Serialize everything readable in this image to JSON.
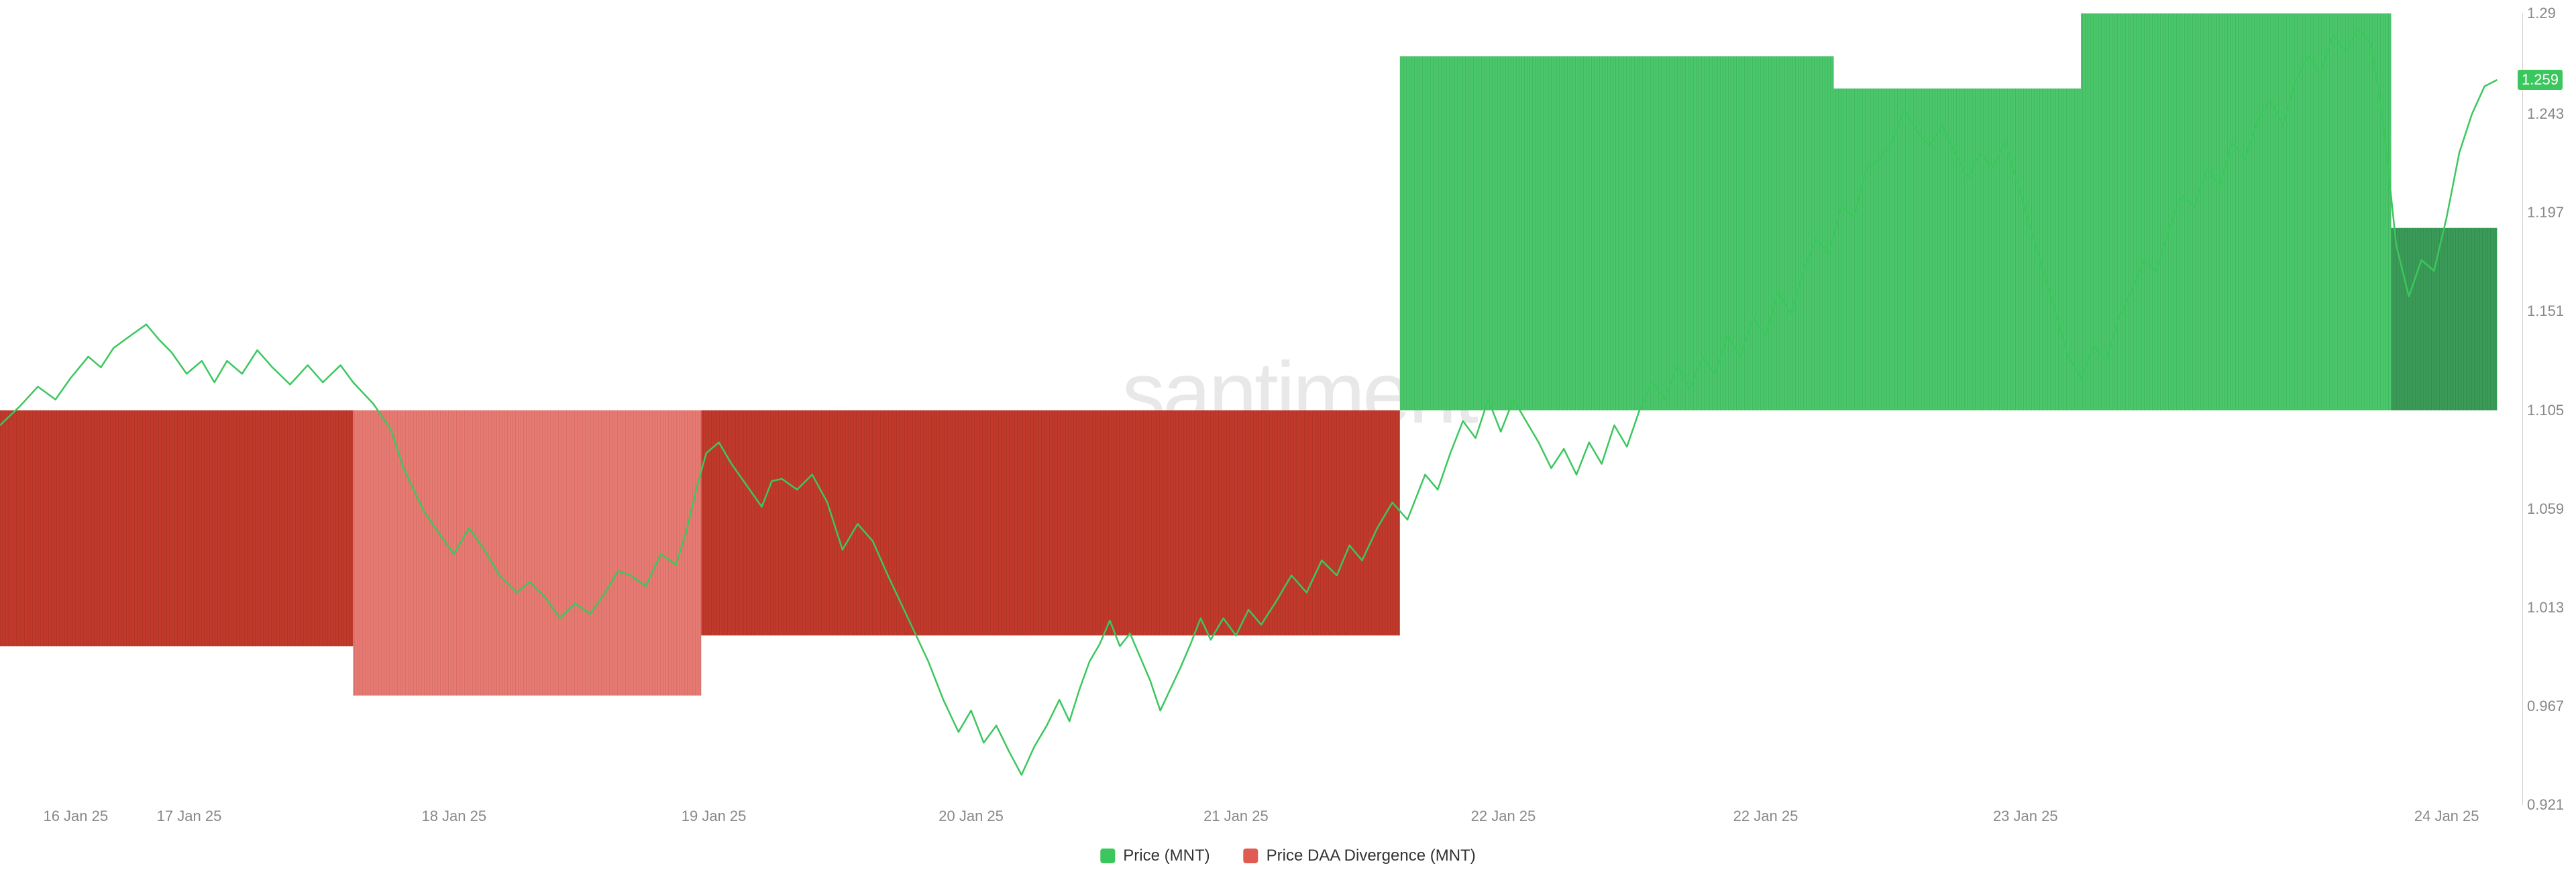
{
  "chart": {
    "type": "combo-bar-line",
    "watermark": ".santiment",
    "background_color": "#ffffff",
    "yaxis": {
      "min": 0.921,
      "max": 1.29,
      "ticks": [
        0.921,
        0.967,
        1.013,
        1.059,
        1.105,
        1.151,
        1.197,
        1.243,
        1.29
      ],
      "tick_color": "#888888",
      "line_color": "#d0d0d0"
    },
    "xaxis": {
      "ticks_text": [
        "16 Jan 25",
        "17 Jan 25",
        "18 Jan 25",
        "19 Jan 25",
        "20 Jan 25",
        "21 Jan 25",
        "22 Jan 25",
        "22 Jan 25",
        "23 Jan 25",
        "24 Jan 25"
      ],
      "ticks_pos": [
        0.03,
        0.075,
        0.18,
        0.283,
        0.385,
        0.49,
        0.596,
        0.7,
        0.803,
        0.97
      ],
      "tick_color": "#888888"
    },
    "current_value": {
      "label": "1.259",
      "color": "#3cc75e"
    },
    "divergence_bars": [
      {
        "x_start": 0.0,
        "x_end": 0.14,
        "base": 1.105,
        "value": 0.995,
        "color": "#c0392b"
      },
      {
        "x_start": 0.14,
        "x_end": 0.278,
        "base": 1.105,
        "value": 0.972,
        "color": "#e77a72"
      },
      {
        "x_start": 0.278,
        "x_end": 0.555,
        "base": 1.105,
        "value": 1.0,
        "color": "#c0392b"
      },
      {
        "x_start": 0.555,
        "x_end": 0.727,
        "base": 1.105,
        "value": 1.27,
        "color": "#4ac76a"
      },
      {
        "x_start": 0.727,
        "x_end": 0.825,
        "base": 1.105,
        "value": 1.255,
        "color": "#4ac76a"
      },
      {
        "x_start": 0.825,
        "x_end": 0.948,
        "base": 1.105,
        "value": 1.29,
        "color": "#4ac76a"
      },
      {
        "x_start": 0.948,
        "x_end": 0.99,
        "base": 1.105,
        "value": 1.19,
        "color": "#3a9a57"
      }
    ],
    "price_line": {
      "color": "#3cc75e",
      "width": 2.5,
      "points": [
        [
          0.0,
          1.098
        ],
        [
          0.008,
          1.107
        ],
        [
          0.015,
          1.116
        ],
        [
          0.022,
          1.11
        ],
        [
          0.028,
          1.12
        ],
        [
          0.035,
          1.13
        ],
        [
          0.04,
          1.125
        ],
        [
          0.045,
          1.134
        ],
        [
          0.052,
          1.14
        ],
        [
          0.058,
          1.145
        ],
        [
          0.063,
          1.138
        ],
        [
          0.068,
          1.132
        ],
        [
          0.074,
          1.122
        ],
        [
          0.08,
          1.128
        ],
        [
          0.085,
          1.118
        ],
        [
          0.09,
          1.128
        ],
        [
          0.096,
          1.122
        ],
        [
          0.102,
          1.133
        ],
        [
          0.108,
          1.125
        ],
        [
          0.115,
          1.117
        ],
        [
          0.122,
          1.126
        ],
        [
          0.128,
          1.118
        ],
        [
          0.135,
          1.126
        ],
        [
          0.14,
          1.118
        ],
        [
          0.148,
          1.108
        ],
        [
          0.155,
          1.096
        ],
        [
          0.16,
          1.078
        ],
        [
          0.168,
          1.058
        ],
        [
          0.175,
          1.046
        ],
        [
          0.18,
          1.038
        ],
        [
          0.186,
          1.05
        ],
        [
          0.192,
          1.04
        ],
        [
          0.198,
          1.028
        ],
        [
          0.205,
          1.02
        ],
        [
          0.21,
          1.025
        ],
        [
          0.216,
          1.018
        ],
        [
          0.222,
          1.008
        ],
        [
          0.228,
          1.015
        ],
        [
          0.234,
          1.01
        ],
        [
          0.24,
          1.02
        ],
        [
          0.245,
          1.03
        ],
        [
          0.25,
          1.028
        ],
        [
          0.256,
          1.023
        ],
        [
          0.262,
          1.038
        ],
        [
          0.268,
          1.033
        ],
        [
          0.272,
          1.048
        ],
        [
          0.276,
          1.068
        ],
        [
          0.28,
          1.085
        ],
        [
          0.285,
          1.09
        ],
        [
          0.29,
          1.08
        ],
        [
          0.296,
          1.07
        ],
        [
          0.302,
          1.06
        ],
        [
          0.306,
          1.072
        ],
        [
          0.31,
          1.073
        ],
        [
          0.316,
          1.068
        ],
        [
          0.322,
          1.075
        ],
        [
          0.328,
          1.062
        ],
        [
          0.334,
          1.04
        ],
        [
          0.34,
          1.052
        ],
        [
          0.346,
          1.044
        ],
        [
          0.352,
          1.028
        ],
        [
          0.356,
          1.018
        ],
        [
          0.362,
          1.003
        ],
        [
          0.368,
          0.988
        ],
        [
          0.374,
          0.97
        ],
        [
          0.38,
          0.955
        ],
        [
          0.385,
          0.965
        ],
        [
          0.39,
          0.95
        ],
        [
          0.395,
          0.958
        ],
        [
          0.4,
          0.946
        ],
        [
          0.405,
          0.935
        ],
        [
          0.41,
          0.948
        ],
        [
          0.415,
          0.958
        ],
        [
          0.42,
          0.97
        ],
        [
          0.424,
          0.96
        ],
        [
          0.428,
          0.975
        ],
        [
          0.432,
          0.988
        ],
        [
          0.436,
          0.996
        ],
        [
          0.44,
          1.007
        ],
        [
          0.444,
          0.995
        ],
        [
          0.448,
          1.001
        ],
        [
          0.452,
          0.99
        ],
        [
          0.456,
          0.979
        ],
        [
          0.46,
          0.965
        ],
        [
          0.464,
          0.975
        ],
        [
          0.468,
          0.985
        ],
        [
          0.472,
          0.996
        ],
        [
          0.476,
          1.008
        ],
        [
          0.48,
          0.998
        ],
        [
          0.485,
          1.008
        ],
        [
          0.49,
          1.0
        ],
        [
          0.495,
          1.012
        ],
        [
          0.5,
          1.005
        ],
        [
          0.506,
          1.016
        ],
        [
          0.512,
          1.028
        ],
        [
          0.518,
          1.02
        ],
        [
          0.524,
          1.035
        ],
        [
          0.53,
          1.028
        ],
        [
          0.535,
          1.042
        ],
        [
          0.54,
          1.035
        ],
        [
          0.546,
          1.05
        ],
        [
          0.552,
          1.062
        ],
        [
          0.558,
          1.054
        ],
        [
          0.565,
          1.075
        ],
        [
          0.57,
          1.068
        ],
        [
          0.575,
          1.085
        ],
        [
          0.58,
          1.1
        ],
        [
          0.585,
          1.092
        ],
        [
          0.59,
          1.11
        ],
        [
          0.595,
          1.095
        ],
        [
          0.6,
          1.11
        ],
        [
          0.605,
          1.1
        ],
        [
          0.61,
          1.09
        ],
        [
          0.615,
          1.078
        ],
        [
          0.62,
          1.087
        ],
        [
          0.625,
          1.075
        ],
        [
          0.63,
          1.09
        ],
        [
          0.635,
          1.08
        ],
        [
          0.64,
          1.098
        ],
        [
          0.645,
          1.088
        ],
        [
          0.65,
          1.105
        ],
        [
          0.655,
          1.118
        ],
        [
          0.66,
          1.11
        ],
        [
          0.665,
          1.126
        ],
        [
          0.67,
          1.115
        ],
        [
          0.675,
          1.13
        ],
        [
          0.68,
          1.122
        ],
        [
          0.685,
          1.14
        ],
        [
          0.69,
          1.13
        ],
        [
          0.695,
          1.148
        ],
        [
          0.7,
          1.14
        ],
        [
          0.705,
          1.16
        ],
        [
          0.71,
          1.15
        ],
        [
          0.715,
          1.17
        ],
        [
          0.72,
          1.185
        ],
        [
          0.725,
          1.178
        ],
        [
          0.73,
          1.2
        ],
        [
          0.735,
          1.195
        ],
        [
          0.74,
          1.218
        ],
        [
          0.745,
          1.222
        ],
        [
          0.75,
          1.23
        ],
        [
          0.755,
          1.245
        ],
        [
          0.76,
          1.235
        ],
        [
          0.765,
          1.228
        ],
        [
          0.77,
          1.238
        ],
        [
          0.775,
          1.225
        ],
        [
          0.78,
          1.213
        ],
        [
          0.785,
          1.225
        ],
        [
          0.79,
          1.218
        ],
        [
          0.795,
          1.23
        ],
        [
          0.8,
          1.21
        ],
        [
          0.805,
          1.19
        ],
        [
          0.81,
          1.17
        ],
        [
          0.815,
          1.15
        ],
        [
          0.82,
          1.13
        ],
        [
          0.825,
          1.12
        ],
        [
          0.83,
          1.135
        ],
        [
          0.835,
          1.128
        ],
        [
          0.84,
          1.148
        ],
        [
          0.845,
          1.16
        ],
        [
          0.85,
          1.175
        ],
        [
          0.855,
          1.17
        ],
        [
          0.86,
          1.19
        ],
        [
          0.865,
          1.205
        ],
        [
          0.87,
          1.2
        ],
        [
          0.875,
          1.218
        ],
        [
          0.88,
          1.21
        ],
        [
          0.885,
          1.23
        ],
        [
          0.89,
          1.222
        ],
        [
          0.895,
          1.24
        ],
        [
          0.9,
          1.25
        ],
        [
          0.905,
          1.238
        ],
        [
          0.91,
          1.258
        ],
        [
          0.915,
          1.27
        ],
        [
          0.92,
          1.262
        ],
        [
          0.925,
          1.28
        ],
        [
          0.93,
          1.272
        ],
        [
          0.935,
          1.283
        ],
        [
          0.94,
          1.276
        ],
        [
          0.945,
          1.238
        ],
        [
          0.95,
          1.182
        ],
        [
          0.955,
          1.158
        ],
        [
          0.96,
          1.175
        ],
        [
          0.965,
          1.17
        ],
        [
          0.97,
          1.195
        ],
        [
          0.975,
          1.225
        ],
        [
          0.98,
          1.243
        ],
        [
          0.985,
          1.256
        ],
        [
          0.99,
          1.259
        ]
      ]
    },
    "legend": [
      {
        "label": "Price (MNT)",
        "color": "#3cc75e"
      },
      {
        "label": "Price DAA Divergence (MNT)",
        "color": "#e05c52"
      }
    ]
  }
}
